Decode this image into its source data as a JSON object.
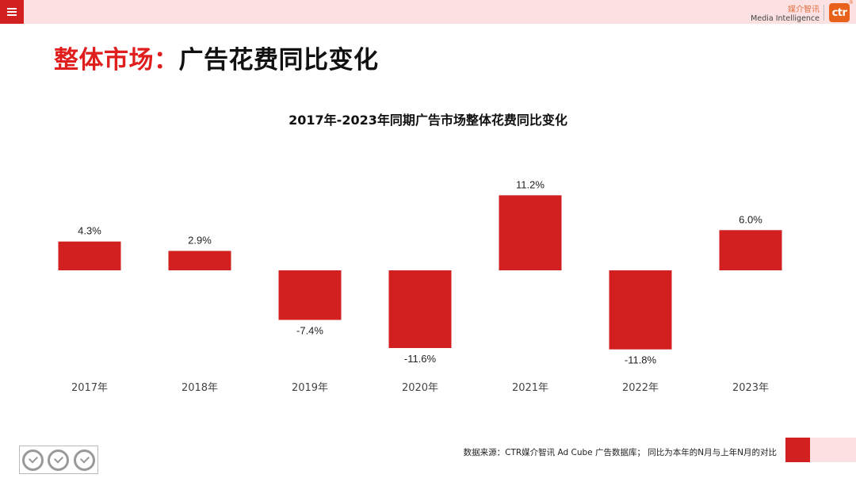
{
  "header": {
    "brand_cn": "媒介智讯",
    "brand_en": "Media Intelligence",
    "logo_text": "ctr",
    "logo_reg": "®"
  },
  "page_title": {
    "red_part": "整体市场：",
    "black_part": "广告花费同比变化"
  },
  "footer": {
    "source": "数据来源：CTR媒介智讯 Ad Cube 广告数据库；  同比为本年的N月与上年N月的对比"
  },
  "colors": {
    "bar": "#d21f1f",
    "accent": "#e01e1e",
    "top_bar": "#fbe1e1"
  },
  "icons": {
    "menu": "hamburger-menu-icon",
    "certification": "sgs-certification-icon"
  },
  "chart_data": {
    "type": "bar",
    "title": "2017年-2023年同期广告市场整体花费同比变化",
    "categories": [
      "2017年",
      "2018年",
      "2019年",
      "2020年",
      "2021年",
      "2022年",
      "2023年"
    ],
    "values": [
      4.3,
      2.9,
      -7.4,
      -11.6,
      11.2,
      -11.8,
      6.0
    ],
    "data_labels": [
      "4.3%",
      "2.9%",
      "-7.4%",
      "-11.6%",
      "11.2%",
      "-11.8%",
      "6.0%"
    ],
    "xlabel": "",
    "ylabel": "",
    "ylim": [
      -12,
      12
    ],
    "grid": false,
    "legend": "none"
  }
}
